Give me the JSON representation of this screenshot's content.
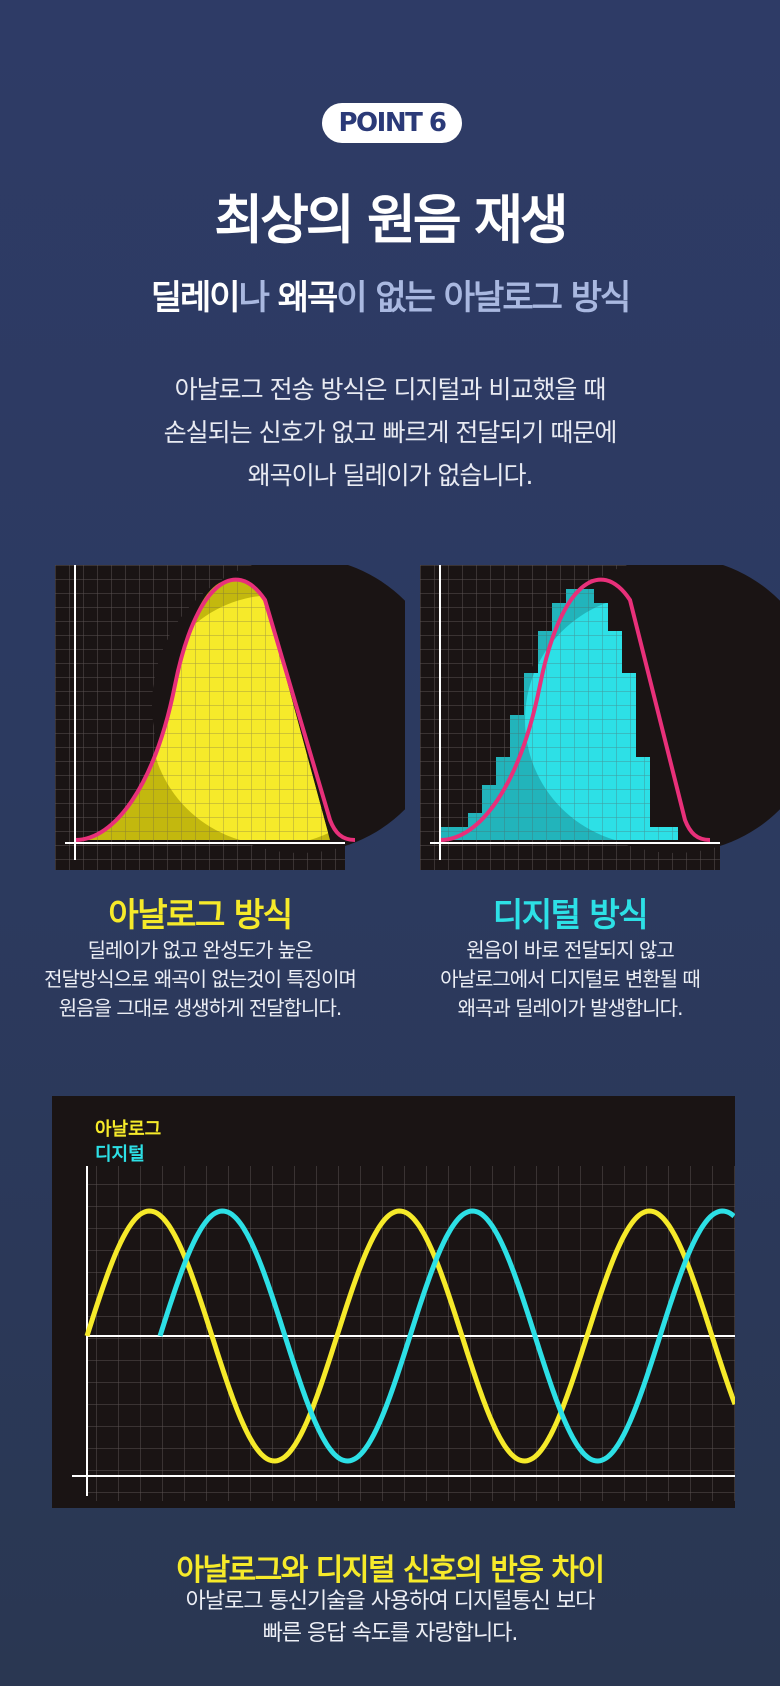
{
  "badge": "POINT 6",
  "title": "최상의 원음 재생",
  "subtitle": {
    "p1": "딜레이",
    "p2": "나 ",
    "p3": "왜곡",
    "p4": "이 없는 아날로그 방식"
  },
  "intro": [
    "아날로그 전송 방식은 디지털과 비교했을 때",
    "손실되는 신호가 없고 빠르게 전달되기 때문에",
    "왜곡이나 딜레이가 없습니다."
  ],
  "analog": {
    "title": "아날로그 방식",
    "desc": [
      "딜레이가 없고 완성도가 높은",
      "전달방식으로 왜곡이 없는것이 특징이며",
      "원음을 그대로 생생하게 전달합니다."
    ]
  },
  "digital": {
    "title": "디지털 방식",
    "desc": [
      "원음이 바로 전달되지 않고",
      "아날로그에서 디지털로 변환될 때",
      "왜곡과 딜레이가 발생합니다."
    ]
  },
  "wave": {
    "legend_analog": "아날로그",
    "legend_digital": "디지털"
  },
  "caption": {
    "title": "아날로그와 디지털 신호의 반응 차이",
    "lines": [
      "아날로그 통신기술을 사용하여 디지털통신 보다",
      "빠른 응답 속도를 자랑합니다."
    ]
  },
  "colors": {
    "yellow": "#f6ea2a",
    "cyan": "#2de0e6",
    "pink": "#e8307a",
    "panel": "#1a1414"
  }
}
